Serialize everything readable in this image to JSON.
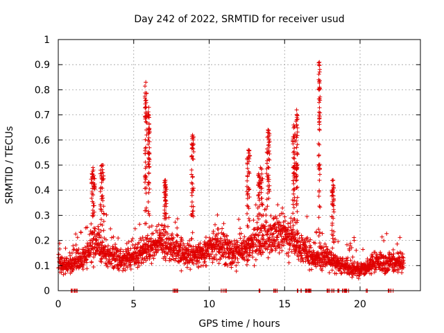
{
  "chart_data": {
    "type": "scatter",
    "title": "Day 242 of 2022, SRMTID for receiver usud",
    "xlabel": "GPS time / hours",
    "ylabel": "SRMTID / TECUs",
    "xlim": [
      0,
      24
    ],
    "ylim": [
      0,
      1
    ],
    "xticks": [
      0,
      5,
      10,
      15,
      20
    ],
    "xtick_labels": [
      "0",
      "5",
      "10",
      "15",
      "20"
    ],
    "yticks": [
      0,
      0.1,
      0.2,
      0.3,
      0.4,
      0.5,
      0.6,
      0.7,
      0.8,
      0.9,
      1
    ],
    "ytick_labels": [
      "0",
      "0.1",
      "0.2",
      "0.3",
      "0.4",
      "0.5",
      "0.6",
      "0.7",
      "0.8",
      "0.9",
      "1"
    ],
    "grid": true,
    "marker": "+",
    "color": "#e00000",
    "baseline_level": [
      {
        "x": 0.0,
        "y": 0.1
      },
      {
        "x": 1.0,
        "y": 0.11
      },
      {
        "x": 1.8,
        "y": 0.14
      },
      {
        "x": 2.4,
        "y": 0.2
      },
      {
        "x": 3.2,
        "y": 0.15
      },
      {
        "x": 4.2,
        "y": 0.12
      },
      {
        "x": 5.0,
        "y": 0.13
      },
      {
        "x": 5.8,
        "y": 0.17
      },
      {
        "x": 6.6,
        "y": 0.2
      },
      {
        "x": 7.8,
        "y": 0.16
      },
      {
        "x": 8.8,
        "y": 0.14
      },
      {
        "x": 9.6,
        "y": 0.14
      },
      {
        "x": 10.4,
        "y": 0.19
      },
      {
        "x": 11.6,
        "y": 0.15
      },
      {
        "x": 12.6,
        "y": 0.17
      },
      {
        "x": 13.8,
        "y": 0.22
      },
      {
        "x": 14.8,
        "y": 0.24
      },
      {
        "x": 15.8,
        "y": 0.18
      },
      {
        "x": 16.8,
        "y": 0.14
      },
      {
        "x": 17.8,
        "y": 0.13
      },
      {
        "x": 18.8,
        "y": 0.1
      },
      {
        "x": 20.0,
        "y": 0.08
      },
      {
        "x": 21.0,
        "y": 0.11
      },
      {
        "x": 22.8,
        "y": 0.11
      }
    ],
    "bursts": [
      {
        "x": 2.3,
        "w": 0.25,
        "peak": 0.49
      },
      {
        "x": 2.9,
        "w": 0.25,
        "peak": 0.5
      },
      {
        "x": 5.8,
        "w": 0.12,
        "peak": 0.83
      },
      {
        "x": 6.0,
        "w": 0.1,
        "peak": 0.73
      },
      {
        "x": 7.1,
        "w": 0.15,
        "peak": 0.44
      },
      {
        "x": 8.9,
        "w": 0.15,
        "peak": 0.62
      },
      {
        "x": 12.6,
        "w": 0.2,
        "peak": 0.56
      },
      {
        "x": 13.4,
        "w": 0.3,
        "peak": 0.49
      },
      {
        "x": 13.9,
        "w": 0.2,
        "peak": 0.64
      },
      {
        "x": 15.6,
        "w": 0.15,
        "peak": 0.66
      },
      {
        "x": 15.8,
        "w": 0.12,
        "peak": 0.72
      },
      {
        "x": 17.3,
        "w": 0.1,
        "peak": 0.91
      },
      {
        "x": 18.2,
        "w": 0.15,
        "peak": 0.44
      }
    ],
    "zero_clusters": [
      {
        "from": 0.7,
        "to": 1.3
      },
      {
        "from": 7.6,
        "to": 8.1
      },
      {
        "from": 10.8,
        "to": 11.2
      },
      {
        "from": 13.3,
        "to": 13.4
      },
      {
        "from": 14.1,
        "to": 14.6
      },
      {
        "from": 15.7,
        "to": 16.8
      },
      {
        "from": 17.7,
        "to": 19.4
      },
      {
        "from": 20.4,
        "to": 20.5
      },
      {
        "from": 21.7,
        "to": 22.2
      }
    ],
    "sample_count": 2300
  }
}
